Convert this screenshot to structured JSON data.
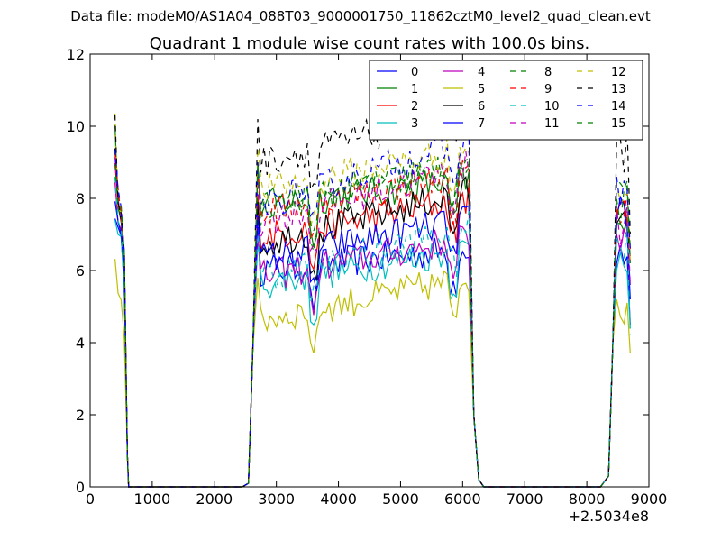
{
  "chart_data": {
    "type": "line",
    "suptitle": "Data file: modeM0/AS1A04_088T03_9000001750_11862cztM0_level2_quad_clean.evt",
    "title": "Quadrant 1 module wise count rates with 100.0s bins.",
    "xlabel": "",
    "ylabel": "",
    "x_offset_label": "+2.5034e8",
    "xlim": [
      0,
      9000
    ],
    "ylim": [
      0,
      12
    ],
    "xticks": [
      0,
      1000,
      2000,
      3000,
      4000,
      5000,
      6000,
      7000,
      8000,
      9000
    ],
    "yticks": [
      0,
      2,
      4,
      6,
      8,
      10,
      12
    ],
    "grid": false,
    "legend_position": "top-right",
    "segments": [
      {
        "start": 400,
        "end": 600,
        "ramp_up": false
      },
      {
        "start": 2700,
        "end": 6100,
        "ramp_up": true
      },
      {
        "start": 8500,
        "end": 8700,
        "ramp_up": true
      }
    ],
    "series": [
      {
        "name": "0",
        "color": "#0000ff",
        "dash": false,
        "base": [
          7.6,
          7.0
        ],
        "plateau": [
          6.0,
          6.6
        ],
        "tail": [
          6.2,
          6.6,
          4.5
        ]
      },
      {
        "name": "1",
        "color": "#008000",
        "dash": false,
        "base": [
          10.0,
          7.8
        ],
        "plateau": [
          7.8,
          8.5
        ],
        "tail": [
          7.3,
          7.1,
          6.6
        ]
      },
      {
        "name": "2",
        "color": "#ff0000",
        "dash": false,
        "base": [
          9.0,
          7.7
        ],
        "plateau": [
          6.9,
          8.0
        ],
        "tail": [
          7.6,
          7.6,
          6.6
        ]
      },
      {
        "name": "3",
        "color": "#00bfbf",
        "dash": false,
        "base": [
          7.6,
          7.0
        ],
        "plateau": [
          5.6,
          6.6
        ],
        "tail": [
          6.0,
          6.4,
          4.4
        ]
      },
      {
        "name": "4",
        "color": "#bf00bf",
        "dash": false,
        "base": [
          8.6,
          7.6
        ],
        "plateau": [
          5.8,
          6.9
        ],
        "tail": [
          7.0,
          7.0,
          5.6
        ]
      },
      {
        "name": "5",
        "color": "#bfbf00",
        "dash": false,
        "base": [
          6.4,
          5.6
        ],
        "plateau": [
          4.6,
          5.8
        ],
        "tail": [
          5.2,
          5.0,
          3.7
        ]
      },
      {
        "name": "6",
        "color": "#000000",
        "dash": false,
        "base": [
          9.2,
          7.9
        ],
        "plateau": [
          6.7,
          8.2
        ],
        "tail": [
          7.3,
          7.3,
          6.4
        ]
      },
      {
        "name": "7",
        "color": "#0000ff",
        "dash": false,
        "base": [
          8.0,
          7.5
        ],
        "plateau": [
          6.3,
          7.4
        ],
        "tail": [
          7.4,
          7.6,
          5.2
        ]
      },
      {
        "name": "8",
        "color": "#008000",
        "dash": true,
        "base": [
          8.5,
          7.8
        ],
        "plateau": [
          7.6,
          9.0
        ],
        "tail": [
          8.5,
          8.4,
          6.6
        ]
      },
      {
        "name": "9",
        "color": "#ff0000",
        "dash": true,
        "base": [
          9.4,
          8.0
        ],
        "plateau": [
          7.6,
          8.7
        ],
        "tail": [
          7.8,
          7.2,
          6.2
        ]
      },
      {
        "name": "10",
        "color": "#00bfbf",
        "dash": true,
        "base": [
          8.6,
          7.6
        ],
        "plateau": [
          5.8,
          7.2
        ],
        "tail": [
          6.9,
          6.6,
          4.2
        ]
      },
      {
        "name": "11",
        "color": "#bf00bf",
        "dash": true,
        "base": [
          9.2,
          8.0
        ],
        "plateau": [
          7.3,
          8.9
        ],
        "tail": [
          7.8,
          7.2,
          5.6
        ]
      },
      {
        "name": "12",
        "color": "#bfbf00",
        "dash": true,
        "base": [
          10.4,
          8.0
        ],
        "plateau": [
          8.2,
          9.4
        ],
        "tail": [
          8.4,
          7.6,
          6.2
        ]
      },
      {
        "name": "13",
        "color": "#000000",
        "dash": true,
        "base": [
          10.2,
          8.0
        ],
        "plateau": [
          9.0,
          10.4
        ],
        "tail": [
          9.6,
          9.2,
          7.0
        ]
      },
      {
        "name": "14",
        "color": "#0000ff",
        "dash": true,
        "base": [
          9.2,
          8.0
        ],
        "plateau": [
          7.8,
          9.6
        ],
        "tail": [
          8.6,
          8.2,
          6.6
        ]
      },
      {
        "name": "15",
        "color": "#008000",
        "dash": true,
        "base": [
          8.8,
          8.0
        ],
        "plateau": [
          7.7,
          9.0
        ],
        "tail": [
          8.0,
          7.8,
          6.2
        ]
      }
    ]
  }
}
